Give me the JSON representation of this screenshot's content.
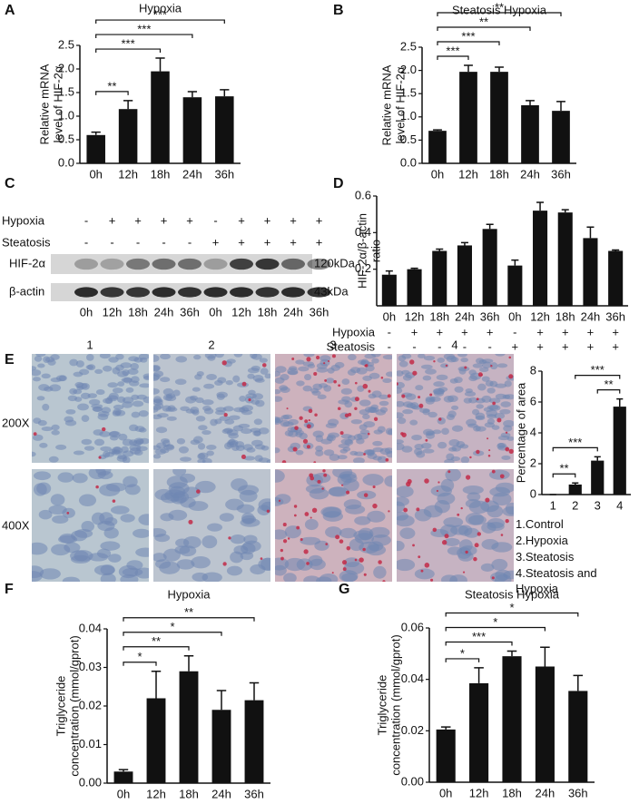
{
  "panel_labels": [
    "A",
    "B",
    "C",
    "D",
    "E",
    "F",
    "G"
  ],
  "chart_data": [
    {
      "type": "bar",
      "title": "Hypoxia",
      "ylabel": [
        "Relative mRNA",
        "level of HIF-2α"
      ],
      "categories": [
        "0h",
        "12h",
        "18h",
        "24h",
        "36h"
      ],
      "values": [
        0.6,
        1.15,
        1.95,
        1.4,
        1.42
      ],
      "errors": [
        0.06,
        0.18,
        0.28,
        0.12,
        0.14
      ],
      "color": "#111111",
      "ylim": [
        0,
        2.5
      ],
      "yticks": [
        {
          "value": 0,
          "label": "0.0"
        },
        0.5,
        {
          "value": 1,
          "label": "1.0"
        },
        1.5,
        {
          "value": 2,
          "label": "2.0"
        },
        2.5
      ],
      "brackets": [
        {
          "between": [
            "0h",
            "12h"
          ],
          "label": "**"
        },
        {
          "between": [
            "0h",
            "18h"
          ],
          "label": "***"
        },
        {
          "between": [
            "0h",
            "24h"
          ],
          "label": "***"
        },
        {
          "between": [
            "0h",
            "36h"
          ],
          "label": "***"
        }
      ]
    },
    {
      "type": "bar",
      "title": "Steatosis Hypoxia",
      "ylabel": [
        "Relative mRNA",
        "level of HIF-2α"
      ],
      "categories": [
        "0h",
        "12h",
        "18h",
        "24h",
        "36h"
      ],
      "values": [
        0.7,
        1.97,
        1.97,
        1.25,
        1.13
      ],
      "errors": [
        0.02,
        0.14,
        0.1,
        0.1,
        0.2
      ],
      "color": "#111111",
      "ylim": [
        0,
        2.5
      ],
      "yticks": [
        {
          "value": 0,
          "label": "0.0"
        },
        0.5,
        {
          "value": 1,
          "label": "1.0"
        },
        1.5,
        {
          "value": 2,
          "label": "2.0"
        },
        2.5
      ],
      "brackets": [
        {
          "between": [
            "0h",
            "12h"
          ],
          "label": "***"
        },
        {
          "between": [
            "0h",
            "18h"
          ],
          "label": "***"
        },
        {
          "between": [
            "0h",
            "24h"
          ],
          "label": "**"
        },
        {
          "between": [
            "0h",
            "36h"
          ],
          "label": "**"
        }
      ]
    },
    {
      "type": "bar",
      "ylabel": [
        "HIF-2α/β-actin",
        "ratio"
      ],
      "categories": [
        "0h",
        "12h",
        "18h",
        "24h",
        "36h",
        "0h",
        "12h",
        "18h",
        "24h",
        "36h"
      ],
      "values": [
        0.17,
        0.2,
        0.3,
        0.33,
        0.42,
        0.22,
        0.52,
        0.51,
        0.37,
        0.3
      ],
      "errors": [
        0.02,
        0.005,
        0.01,
        0.015,
        0.025,
        0.03,
        0.045,
        0.015,
        0.06,
        0.005
      ],
      "color": "#111111",
      "ylim": [
        0,
        0.6
      ],
      "yticks": [
        0.2,
        0.4,
        0.6
      ],
      "conditions": [
        {
          "name": "Hypoxia",
          "signs": [
            "-",
            "+",
            "+",
            "+",
            "+",
            "-",
            "+",
            "+",
            "+",
            "+"
          ]
        },
        {
          "name": "Steatosis",
          "signs": [
            "-",
            "-",
            "-",
            "-",
            "-",
            "+",
            "+",
            "+",
            "+",
            "+"
          ]
        }
      ]
    },
    {
      "type": "bar",
      "ylabel": [
        "Percentage of area"
      ],
      "categories": [
        "1",
        "2",
        "3",
        "4"
      ],
      "values": [
        0,
        0.65,
        2.2,
        5.7
      ],
      "errors": [
        0,
        0.1,
        0.25,
        0.5
      ],
      "color": "#111111",
      "ylim": [
        0,
        8
      ],
      "yticks": [
        0,
        2,
        4,
        6,
        8
      ],
      "brackets": [
        {
          "between": [
            "1",
            "2"
          ],
          "label": "**"
        },
        {
          "between": [
            "1",
            "3"
          ],
          "label": "***"
        },
        {
          "between": [
            "3",
            "4"
          ],
          "label": "**"
        },
        {
          "between": [
            "2",
            "4"
          ],
          "label": "***"
        }
      ]
    },
    {
      "type": "bar",
      "title": "Hypoxia",
      "ylabel": [
        "Triglyceride",
        "concentration (mmol/gprot)"
      ],
      "categories": [
        "0h",
        "12h",
        "18h",
        "24h",
        "36h"
      ],
      "values": [
        0.003,
        0.022,
        0.029,
        0.019,
        0.0215
      ],
      "errors": [
        0.0005,
        0.007,
        0.004,
        0.005,
        0.0045
      ],
      "color": "#111111",
      "ylim": [
        0,
        0.04
      ],
      "yticks": [
        {
          "value": 0,
          "label": "0.00"
        },
        0.01,
        0.02,
        0.03,
        0.04
      ],
      "brackets": [
        {
          "between": [
            "0h",
            "12h"
          ],
          "label": "*"
        },
        {
          "between": [
            "0h",
            "18h"
          ],
          "label": "**"
        },
        {
          "between": [
            "0h",
            "24h"
          ],
          "label": "*"
        },
        {
          "between": [
            "0h",
            "36h"
          ],
          "label": "**"
        }
      ]
    },
    {
      "type": "bar",
      "title": "Steatosis Hypoxia",
      "ylabel": [
        "Triglyceride",
        "concentration (mmol/gprot)"
      ],
      "categories": [
        "0h",
        "12h",
        "18h",
        "24h",
        "36h"
      ],
      "values": [
        0.0205,
        0.0385,
        0.049,
        0.045,
        0.0355
      ],
      "errors": [
        0.001,
        0.006,
        0.002,
        0.0075,
        0.006
      ],
      "color": "#111111",
      "ylim": [
        0,
        0.06
      ],
      "yticks": [
        {
          "value": 0,
          "label": "0.00"
        },
        0.02,
        0.04,
        0.06
      ],
      "brackets": [
        {
          "between": [
            "0h",
            "12h"
          ],
          "label": "*"
        },
        {
          "between": [
            "0h",
            "18h"
          ],
          "label": "***"
        },
        {
          "between": [
            "0h",
            "24h"
          ],
          "label": "*"
        },
        {
          "between": [
            "0h",
            "36h"
          ],
          "label": "*"
        }
      ]
    }
  ],
  "blot": {
    "conditions": [
      {
        "name": "Hypoxia",
        "signs": [
          "-",
          "+",
          "+",
          "+",
          "+",
          "-",
          "+",
          "+",
          "+",
          "+"
        ]
      },
      {
        "name": "Steatosis",
        "signs": [
          "-",
          "-",
          "-",
          "-",
          "-",
          "+",
          "+",
          "+",
          "+",
          "+"
        ]
      }
    ],
    "bands": [
      {
        "name": "HIF-2α",
        "size": "120kDa"
      },
      {
        "name": "β-actin",
        "size": "43kDa"
      }
    ],
    "lanes": [
      "0h",
      "12h",
      "18h",
      "24h",
      "36h",
      "0h",
      "12h",
      "18h",
      "24h",
      "36h"
    ]
  },
  "micrographs": {
    "columns": [
      "1",
      "2",
      "3",
      "4"
    ],
    "rows": [
      "200X",
      "400X"
    ],
    "legend": [
      "1.Control",
      "2.Hypoxia",
      "3.Steatosis",
      "4.Steatosis and Hypoxia"
    ]
  }
}
